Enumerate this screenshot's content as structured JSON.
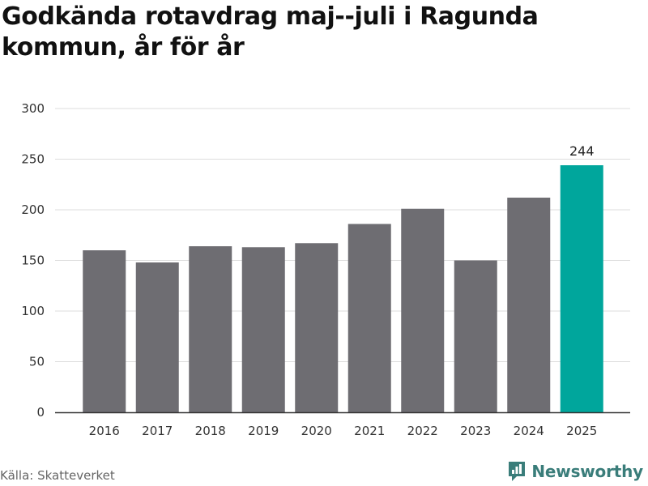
{
  "title": "Godkända rotavdrag maj--juli i Ragunda kommun, år för år",
  "source": "Källa: Skatteverket",
  "brand": {
    "name": "Newsworthy",
    "icon": "newsworthy-logo-icon",
    "color": "#3a7d7a"
  },
  "colors": {
    "bar": "#6e6d72",
    "highlight": "#00a69c",
    "grid": "#dddddd",
    "axis": "#333333"
  },
  "chart_data": {
    "type": "bar",
    "title": "Godkända rotavdrag maj--juli i Ragunda kommun, år för år",
    "xlabel": "",
    "ylabel": "",
    "categories": [
      "2016",
      "2017",
      "2018",
      "2019",
      "2020",
      "2021",
      "2022",
      "2023",
      "2024",
      "2025"
    ],
    "values": [
      160,
      148,
      164,
      163,
      167,
      186,
      201,
      150,
      212,
      244
    ],
    "highlight_index": 9,
    "highlight_label": "244",
    "ylim": [
      0,
      300
    ],
    "yticks": [
      "0",
      "50",
      "100",
      "150",
      "200",
      "250",
      "300"
    ],
    "grid": true,
    "legend": "none"
  }
}
